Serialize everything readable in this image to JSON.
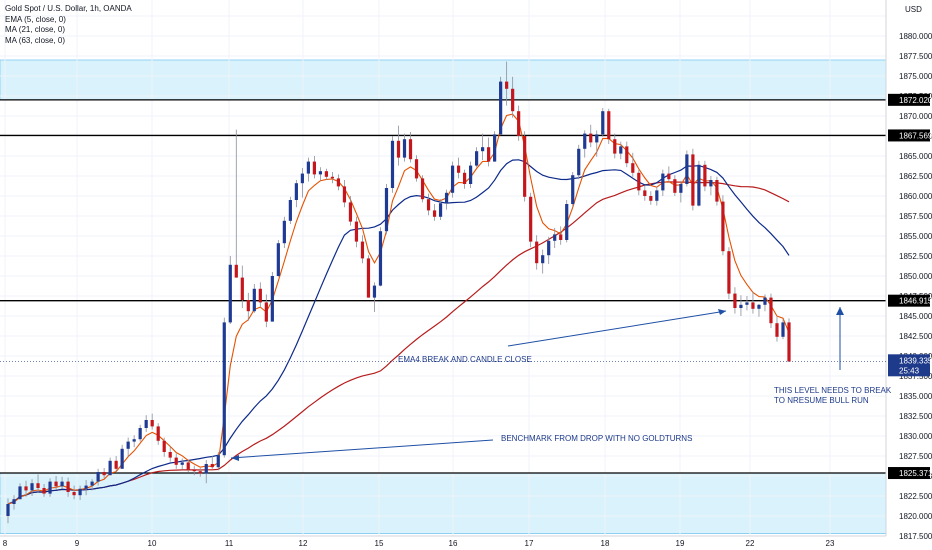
{
  "legend": {
    "symbol": "Gold Spot / U.S. Dollar, 1h, OANDA",
    "ema5": "EMA (5, close, 0)",
    "ma21": "MA (21, close, 0)",
    "ma63": "MA (63, close, 0)"
  },
  "chart_data": {
    "type": "candlestick",
    "currency": "USD",
    "y_ticks": [
      1817.5,
      1820,
      1822.5,
      1825,
      1827.5,
      1830,
      1832.5,
      1835,
      1837.5,
      1840,
      1842.5,
      1845,
      1847.5,
      1850,
      1852.5,
      1855,
      1857.5,
      1860,
      1862.5,
      1865,
      1867.5,
      1870,
      1872.5,
      1875,
      1877.5,
      1880,
      1882.5
    ],
    "y_tick_labels": [
      "1817.500",
      "1820.000",
      "1822.500",
      "1825.000",
      "1827.500",
      "1830.000",
      "1832.500",
      "1835.000",
      "1837.500",
      "1840.000",
      "1842.500",
      "1845.000",
      "1847.500",
      "1850.000",
      "1852.500",
      "1855.000",
      "1857.500",
      "1860.000",
      "1862.500",
      "1865.000",
      "1867.500",
      "1870.000",
      "1872.500",
      "1875.000",
      "1877.500",
      "1880.000",
      "1882.500"
    ],
    "ylim": [
      1817.0,
      1883.5
    ],
    "x_labels": [
      "8",
      "9",
      "10",
      "11",
      "12",
      "15",
      "16",
      "17",
      "18",
      "19",
      "22",
      "23"
    ],
    "horizontal_levels": [
      {
        "value": 1872.02,
        "label": "1872.020"
      },
      {
        "value": 1867.569,
        "label": "1867.569"
      },
      {
        "value": 1846.915,
        "label": "1846.915"
      },
      {
        "value": 1825.371,
        "label": "1825.371"
      }
    ],
    "zones": [
      {
        "from": 1872.02,
        "to": 1877.0
      },
      {
        "from": 1817.8,
        "to": 1825.371
      }
    ],
    "last_price": {
      "value": 1839.335,
      "label": "1839.335",
      "countdown": "25:43"
    },
    "annotations": [
      {
        "text": "EMA4 BREAK AND CANDLE CLOSE"
      },
      {
        "text": "BENCHMARK FROM DROP WITH NO GOLDTURNS"
      },
      {
        "text": "THIS LEVEL NEEDS TO BREAK"
      },
      {
        "text": "TO NRESUME BULL RUN"
      }
    ],
    "candles": [
      [
        1820,
        1822.2,
        1819.1,
        1821.5
      ],
      [
        1821.5,
        1822.6,
        1820.8,
        1822.1
      ],
      [
        1822.1,
        1824.1,
        1822.1,
        1823.7
      ],
      [
        1823.7,
        1824.4,
        1822.4,
        1823.2
      ],
      [
        1823.2,
        1824.6,
        1822.5,
        1824.1
      ],
      [
        1824.1,
        1825.2,
        1822.9,
        1823.5
      ],
      [
        1823.5,
        1824.0,
        1822.4,
        1822.8
      ],
      [
        1822.8,
        1824.7,
        1822.4,
        1824.3
      ],
      [
        1824.3,
        1825.0,
        1823.3,
        1823.7
      ],
      [
        1823.7,
        1824.9,
        1823.4,
        1824.3
      ],
      [
        1824.3,
        1824.8,
        1822.4,
        1823.0
      ],
      [
        1823.0,
        1823.8,
        1822.1,
        1822.6
      ],
      [
        1822.6,
        1823.8,
        1822.0,
        1823.4
      ],
      [
        1823.4,
        1824.5,
        1822.6,
        1823.8
      ],
      [
        1823.8,
        1824.6,
        1823.2,
        1824.3
      ],
      [
        1824.3,
        1825.9,
        1823.8,
        1825.5
      ],
      [
        1825.5,
        1826.0,
        1824.7,
        1825.1
      ],
      [
        1825.1,
        1827.3,
        1825.1,
        1826.9
      ],
      [
        1826.9,
        1827.5,
        1825.4,
        1825.9
      ],
      [
        1825.9,
        1828.9,
        1825.9,
        1828.4
      ],
      [
        1828.4,
        1829.8,
        1827.4,
        1829.3
      ],
      [
        1829.3,
        1830.1,
        1828.6,
        1829.6
      ],
      [
        1829.6,
        1831.4,
        1829.3,
        1831.0
      ],
      [
        1831.0,
        1832.6,
        1830.5,
        1832.0
      ],
      [
        1832.0,
        1832.8,
        1830.8,
        1831.2
      ],
      [
        1831.2,
        1831.6,
        1828.9,
        1829.4
      ],
      [
        1829.4,
        1829.8,
        1827.4,
        1828.0
      ],
      [
        1828.0,
        1828.7,
        1826.8,
        1827.3
      ],
      [
        1827.3,
        1827.8,
        1825.9,
        1826.4
      ],
      [
        1826.4,
        1827.2,
        1825.8,
        1826.7
      ],
      [
        1826.7,
        1827.0,
        1825.5,
        1825.8
      ],
      [
        1825.8,
        1826.3,
        1825.1,
        1825.6
      ],
      [
        1825.6,
        1826.0,
        1824.9,
        1825.3
      ],
      [
        1825.3,
        1827.0,
        1824.1,
        1826.5
      ],
      [
        1826.5,
        1827.5,
        1825.9,
        1826.1
      ],
      [
        1826.1,
        1828.0,
        1825.7,
        1827.6
      ],
      [
        1827.6,
        1844.8,
        1827.3,
        1844.2
      ],
      [
        1844.2,
        1852.5,
        1844.0,
        1851.4
      ],
      [
        1851.4,
        1868.3,
        1849.8,
        1849.8
      ],
      [
        1849.8,
        1851.3,
        1846.0,
        1847.0
      ],
      [
        1847.0,
        1847.9,
        1844.4,
        1845.6
      ],
      [
        1845.6,
        1849.0,
        1845.4,
        1848.4
      ],
      [
        1848.4,
        1849.2,
        1846.1,
        1846.7
      ],
      [
        1846.7,
        1847.7,
        1843.6,
        1844.3
      ],
      [
        1844.3,
        1850.5,
        1844.3,
        1850.0
      ],
      [
        1850.0,
        1854.5,
        1849.9,
        1854.1
      ],
      [
        1854.1,
        1857.4,
        1853.5,
        1856.9
      ],
      [
        1856.9,
        1859.9,
        1856.5,
        1859.5
      ],
      [
        1859.5,
        1862.0,
        1858.6,
        1861.6
      ],
      [
        1861.6,
        1863.5,
        1859.8,
        1862.8
      ],
      [
        1862.8,
        1864.8,
        1861.8,
        1864.3
      ],
      [
        1864.3,
        1865.0,
        1862.2,
        1862.7
      ],
      [
        1862.7,
        1863.6,
        1861.9,
        1863.1
      ],
      [
        1863.1,
        1863.4,
        1862.0,
        1862.4
      ],
      [
        1862.4,
        1863.0,
        1861.6,
        1862.2
      ],
      [
        1862.2,
        1862.7,
        1860.7,
        1861.2
      ],
      [
        1861.2,
        1862.0,
        1858.6,
        1859.2
      ],
      [
        1859.2,
        1860.0,
        1856.3,
        1856.8
      ],
      [
        1856.8,
        1857.4,
        1853.6,
        1854.3
      ],
      [
        1854.3,
        1855.1,
        1851.6,
        1852.2
      ],
      [
        1852.2,
        1852.6,
        1847.3,
        1847.3
      ],
      [
        1847.3,
        1849.2,
        1845.5,
        1848.8
      ],
      [
        1848.8,
        1856.1,
        1848.7,
        1855.6
      ],
      [
        1855.6,
        1861.5,
        1855.2,
        1861.0
      ],
      [
        1861.0,
        1867.5,
        1860.4,
        1866.9
      ],
      [
        1866.9,
        1868.8,
        1863.8,
        1864.8
      ],
      [
        1864.8,
        1867.8,
        1864.3,
        1867.1
      ],
      [
        1867.1,
        1868.0,
        1864.2,
        1864.6
      ],
      [
        1864.6,
        1865.1,
        1861.8,
        1862.2
      ],
      [
        1862.2,
        1862.6,
        1859.2,
        1859.6
      ],
      [
        1859.6,
        1860.3,
        1857.6,
        1858.2
      ],
      [
        1858.2,
        1859.0,
        1856.9,
        1857.4
      ],
      [
        1857.4,
        1859.6,
        1857.0,
        1859.1
      ],
      [
        1859.1,
        1860.8,
        1858.3,
        1860.4
      ],
      [
        1860.4,
        1864.3,
        1859.8,
        1863.8
      ],
      [
        1863.8,
        1864.8,
        1862.2,
        1862.9
      ],
      [
        1862.9,
        1863.3,
        1860.9,
        1861.5
      ],
      [
        1861.5,
        1864.3,
        1861.0,
        1863.8
      ],
      [
        1863.8,
        1866.1,
        1863.6,
        1865.6
      ],
      [
        1865.6,
        1867.8,
        1864.5,
        1866.1
      ],
      [
        1866.1,
        1867.3,
        1863.7,
        1864.3
      ],
      [
        1864.3,
        1868.1,
        1864.3,
        1867.7
      ],
      [
        1867.7,
        1874.9,
        1867.6,
        1874.3
      ],
      [
        1874.3,
        1876.8,
        1871.3,
        1873.4
      ],
      [
        1873.4,
        1874.9,
        1869.8,
        1870.6
      ],
      [
        1870.6,
        1871.3,
        1866.9,
        1867.5
      ],
      [
        1867.5,
        1868.1,
        1859.3,
        1859.9
      ],
      [
        1859.9,
        1860.4,
        1853.6,
        1854.3
      ],
      [
        1854.3,
        1855.1,
        1850.8,
        1851.6
      ],
      [
        1851.6,
        1853.3,
        1850.3,
        1852.6
      ],
      [
        1852.6,
        1854.9,
        1851.5,
        1854.4
      ],
      [
        1854.4,
        1856.0,
        1853.5,
        1855.2
      ],
      [
        1855.2,
        1856.2,
        1853.9,
        1854.5
      ],
      [
        1854.5,
        1859.5,
        1854.2,
        1859.0
      ],
      [
        1859.0,
        1863.0,
        1858.6,
        1862.6
      ],
      [
        1862.6,
        1866.4,
        1862.1,
        1865.9
      ],
      [
        1865.9,
        1868.2,
        1864.8,
        1867.8
      ],
      [
        1867.8,
        1868.9,
        1866.1,
        1866.7
      ],
      [
        1866.7,
        1868.2,
        1864.9,
        1867.7
      ],
      [
        1867.7,
        1871.0,
        1867.4,
        1870.6
      ],
      [
        1870.6,
        1870.9,
        1866.5,
        1867.1
      ],
      [
        1867.1,
        1867.8,
        1864.7,
        1865.3
      ],
      [
        1865.3,
        1866.8,
        1864.6,
        1866.2
      ],
      [
        1866.2,
        1866.8,
        1863.6,
        1864.1
      ],
      [
        1864.1,
        1865.4,
        1862.4,
        1862.9
      ],
      [
        1862.9,
        1863.3,
        1860.1,
        1860.7
      ],
      [
        1860.7,
        1861.3,
        1859.4,
        1860.0
      ],
      [
        1860.0,
        1860.6,
        1858.9,
        1859.4
      ],
      [
        1859.4,
        1861.2,
        1858.8,
        1860.7
      ],
      [
        1860.7,
        1863.3,
        1860.0,
        1862.8
      ],
      [
        1862.8,
        1863.7,
        1861.7,
        1862.1
      ],
      [
        1862.1,
        1862.6,
        1860.0,
        1860.4
      ],
      [
        1860.4,
        1861.9,
        1859.2,
        1861.5
      ],
      [
        1861.5,
        1865.7,
        1861.2,
        1865.2
      ],
      [
        1865.2,
        1865.9,
        1858.2,
        1858.8
      ],
      [
        1858.8,
        1864.4,
        1858.7,
        1863.9
      ],
      [
        1863.9,
        1864.4,
        1860.6,
        1861.2
      ],
      [
        1861.2,
        1862.5,
        1860.1,
        1862.0
      ],
      [
        1862.0,
        1862.4,
        1858.8,
        1859.3
      ],
      [
        1859.3,
        1860.1,
        1852.6,
        1853.1
      ],
      [
        1853.1,
        1853.6,
        1847.1,
        1847.8
      ],
      [
        1847.8,
        1848.6,
        1845.3,
        1846.0
      ],
      [
        1846.0,
        1847.6,
        1845.0,
        1846.4
      ],
      [
        1846.4,
        1847.5,
        1845.7,
        1846.7
      ],
      [
        1846.7,
        1848.0,
        1845.3,
        1845.9
      ],
      [
        1845.9,
        1846.5,
        1844.9,
        1846.4
      ],
      [
        1846.4,
        1847.7,
        1845.6,
        1847.3
      ],
      [
        1847.3,
        1847.8,
        1843.5,
        1844.1
      ],
      [
        1844.1,
        1844.9,
        1841.8,
        1842.4
      ],
      [
        1842.4,
        1844.6,
        1842.1,
        1844.2
      ],
      [
        1844.2,
        1844.7,
        1839.3,
        1839.3
      ]
    ]
  }
}
